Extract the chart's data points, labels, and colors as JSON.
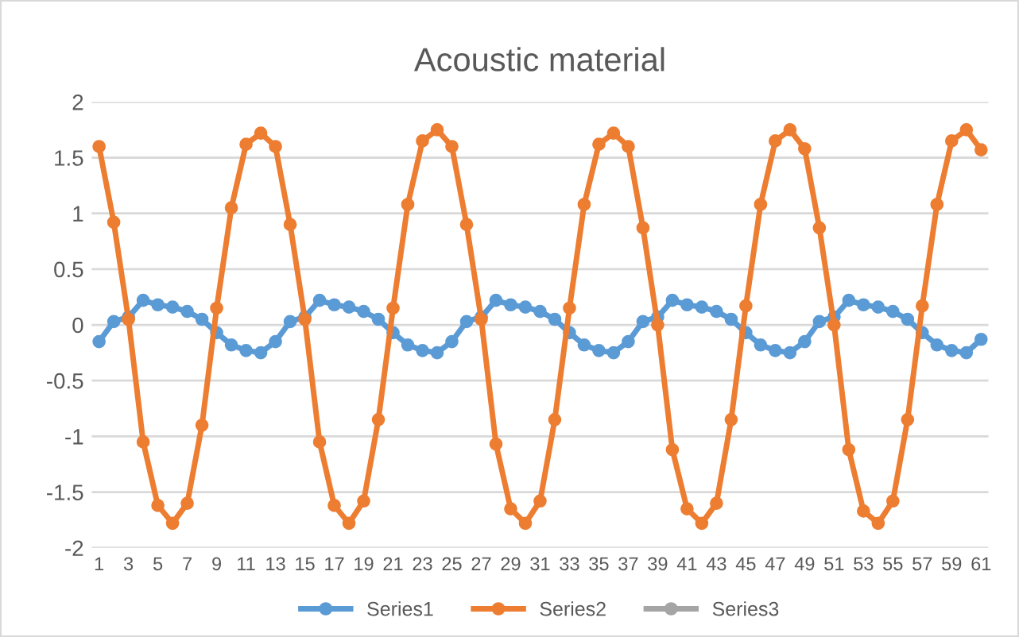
{
  "chart_data": {
    "type": "line",
    "title": "Acoustic material",
    "categories": [
      "1",
      null,
      "3",
      null,
      "5",
      null,
      "7",
      null,
      "9",
      null,
      "11",
      null,
      "13",
      null,
      "15",
      null,
      "17",
      null,
      "19",
      null,
      "21",
      null,
      "23",
      null,
      "25",
      null,
      "27",
      null,
      "29",
      null,
      "31",
      null,
      "33",
      null,
      "35",
      null,
      "37",
      null,
      "39",
      null,
      "41",
      null,
      "43",
      null,
      "45",
      null,
      "47",
      null,
      "49",
      null,
      "51",
      null,
      "53",
      null,
      "55",
      null,
      "57",
      null,
      "59",
      null,
      "61"
    ],
    "series": [
      {
        "name": "Series1",
        "color": "#5b9bd5",
        "values": [
          -0.15,
          0.03,
          0.07,
          0.22,
          0.18,
          0.16,
          0.12,
          0.05,
          -0.07,
          -0.18,
          -0.23,
          -0.25,
          -0.15,
          0.03,
          0.07,
          0.22,
          0.18,
          0.16,
          0.12,
          0.05,
          -0.07,
          -0.18,
          -0.23,
          -0.25,
          -0.15,
          0.03,
          0.07,
          0.22,
          0.18,
          0.16,
          0.12,
          0.05,
          -0.07,
          -0.18,
          -0.23,
          -0.25,
          -0.15,
          0.03,
          0.07,
          0.22,
          0.18,
          0.16,
          0.12,
          0.05,
          -0.07,
          -0.18,
          -0.23,
          -0.25,
          -0.15,
          0.03,
          0.07,
          0.22,
          0.18,
          0.16,
          0.12,
          0.05,
          -0.07,
          -0.18,
          -0.23,
          -0.25,
          -0.13
        ]
      },
      {
        "name": "Series2",
        "color": "#ed7d31",
        "values": [
          1.6,
          0.92,
          0.05,
          -1.05,
          -1.62,
          -1.78,
          -1.6,
          -0.9,
          0.15,
          1.05,
          1.62,
          1.72,
          1.6,
          0.9,
          0.05,
          -1.05,
          -1.62,
          -1.78,
          -1.58,
          -0.85,
          0.15,
          1.08,
          1.65,
          1.75,
          1.6,
          0.9,
          0.05,
          -1.07,
          -1.65,
          -1.78,
          -1.58,
          -0.85,
          0.15,
          1.08,
          1.62,
          1.72,
          1.6,
          0.87,
          0.0,
          -1.12,
          -1.65,
          -1.78,
          -1.6,
          -0.85,
          0.17,
          1.08,
          1.65,
          1.75,
          1.58,
          0.87,
          0.0,
          -1.12,
          -1.67,
          -1.78,
          -1.58,
          -0.85,
          0.17,
          1.08,
          1.65,
          1.75,
          1.57
        ]
      },
      {
        "name": "Series3",
        "color": "#a5a5a5",
        "values": [
          null,
          null,
          null,
          null,
          null,
          null,
          null,
          null,
          null,
          null,
          null,
          null,
          null,
          null,
          null,
          null,
          null,
          null,
          null,
          null,
          null,
          null,
          null,
          null,
          null,
          null,
          null,
          null,
          null,
          null,
          null,
          null,
          null,
          null,
          null,
          null,
          null,
          null,
          null,
          null,
          null,
          null,
          null,
          null,
          null,
          null,
          null,
          null,
          null,
          null,
          null,
          null,
          null,
          null,
          null,
          null,
          null,
          null,
          null,
          null,
          null
        ]
      }
    ],
    "ylim": [
      -2,
      2
    ],
    "yticks": [
      -2,
      -1.5,
      -1,
      -0.5,
      0,
      0.5,
      1,
      1.5,
      2
    ],
    "grid": "y",
    "legend": "bottom",
    "marker": "circle",
    "line_style": "solid"
  }
}
